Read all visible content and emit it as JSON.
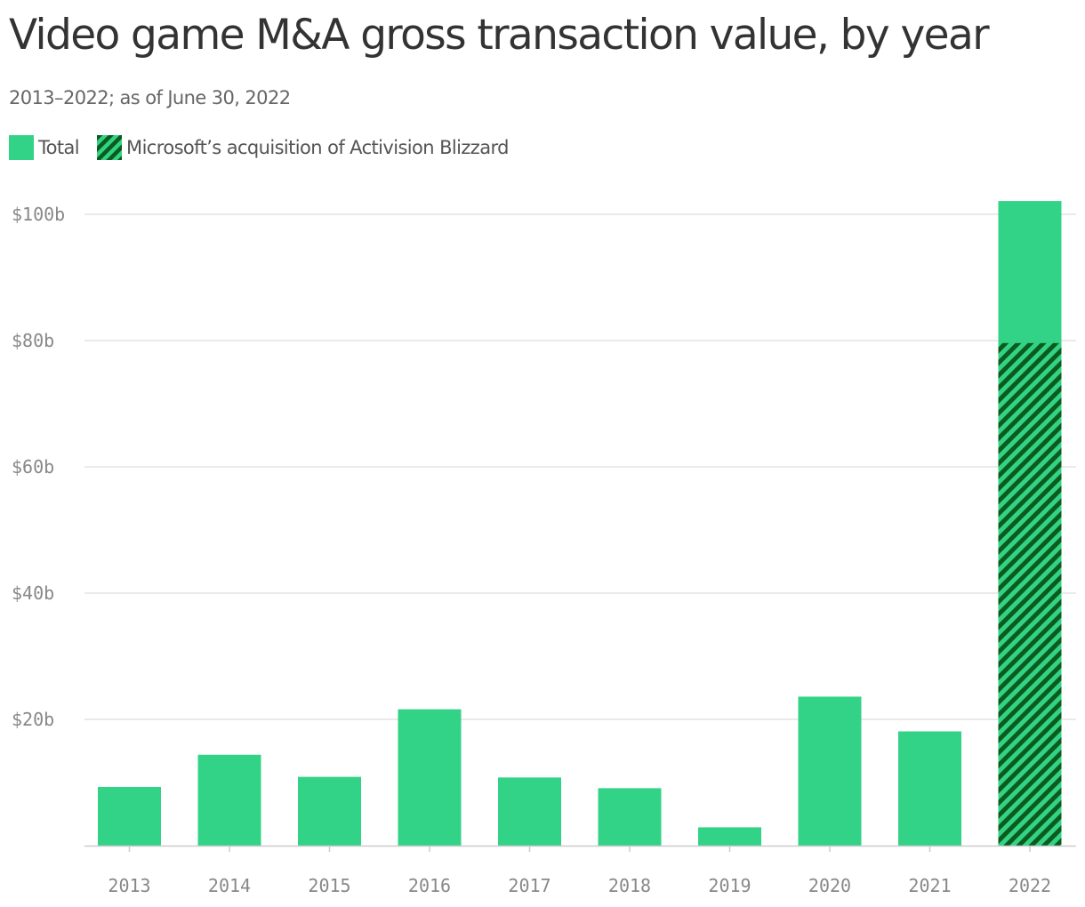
{
  "chart_data": {
    "type": "bar",
    "title": "Video game M&A gross transaction value, by year",
    "subtitle": "2013–2022; as of June 30, 2022",
    "xlabel": "",
    "ylabel": "",
    "categories": [
      "2013",
      "2014",
      "2015",
      "2016",
      "2017",
      "2018",
      "2019",
      "2020",
      "2021",
      "2022"
    ],
    "series": [
      {
        "name": "Total",
        "color": "#33d387",
        "values": [
          9.3,
          14.4,
          10.9,
          21.6,
          10.8,
          9.1,
          2.9,
          23.6,
          18.1,
          102.1
        ]
      },
      {
        "name": "Microsoft’s acquisition of Activision Blizzard",
        "color": "#0b5c1c",
        "pattern": "diagonal-stripes",
        "values": [
          0,
          0,
          0,
          0,
          0,
          0,
          0,
          0,
          0,
          79.6
        ]
      }
    ],
    "ylim": [
      0,
      102.1
    ],
    "yticks": [
      20,
      40,
      60,
      80,
      100
    ],
    "ytick_labels": [
      "$20b",
      "$40b",
      "$60b",
      "$80b",
      "$100b"
    ],
    "grid": true,
    "legend_position": "top-left"
  }
}
